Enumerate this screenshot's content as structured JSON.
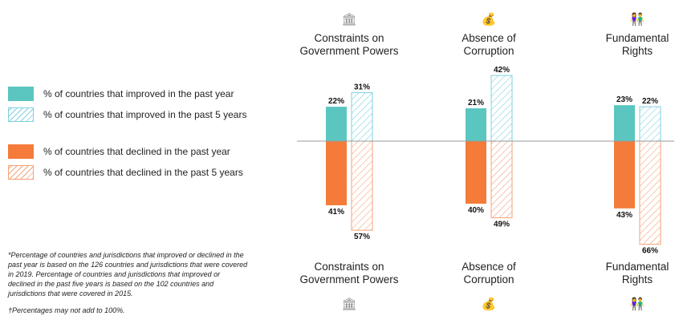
{
  "legend": [
    {
      "key": "improved_1y",
      "label": "% of countries that improved in the past year",
      "color": "#5bc5c0",
      "pattern": "solid"
    },
    {
      "key": "improved_5y",
      "label": "% of countries that improved in the past 5 years",
      "color": "#7fd1e0",
      "pattern": "hatch"
    },
    {
      "key": "declined_1y",
      "label": "% of countries that declined in the past year",
      "color": "#f47b3a",
      "pattern": "solid"
    },
    {
      "key": "declined_5y",
      "label": "% of countries that declined in the past 5 years",
      "color": "#f5a27a",
      "pattern": "hatch"
    }
  ],
  "notes": {
    "footnote": "*Percentage of countries and jurisdictions that improved or declined in the past year is based on the 126 countries and jurisdictions that were covered in 2019. Percentage of countries and jurisdictions that improved or declined in the past five years is based on the 102 countries and jurisdictions that were covered in 2015.",
    "disclaimer": "†Percentages may not add to 100%."
  },
  "icons": [
    "bank-icon",
    "money-bag-icon",
    "people-icon"
  ],
  "chart_data": {
    "type": "bar",
    "categories": [
      "Constraints on Government Powers",
      "Absence of Corruption",
      "Fundamental Rights"
    ],
    "category_lines": [
      [
        "Constraints on",
        "Government Powers"
      ],
      [
        "Absence of",
        "Corruption"
      ],
      [
        "Fundamental",
        "Rights"
      ]
    ],
    "series": [
      {
        "name": "% of countries that improved in the past year",
        "values": [
          22,
          21,
          23
        ],
        "labels": [
          "22%",
          "21%",
          "23%"
        ],
        "color": "#5bc5c0",
        "pattern": "solid",
        "direction": "up"
      },
      {
        "name": "% of countries that improved in the past 5 years",
        "values": [
          31,
          42,
          22
        ],
        "labels": [
          "31%",
          "42%",
          "22%"
        ],
        "color": "#7fd1e0",
        "pattern": "hatch",
        "direction": "up"
      },
      {
        "name": "% of countries that declined in the past year",
        "values": [
          41,
          40,
          43
        ],
        "labels": [
          "41%",
          "40%",
          "43%"
        ],
        "color": "#f47b3a",
        "pattern": "solid",
        "direction": "down"
      },
      {
        "name": "% of countries that declined in the past 5 years",
        "values": [
          57,
          49,
          66
        ],
        "labels": [
          "57%",
          "49%",
          "66%"
        ],
        "color": "#f5a27a",
        "pattern": "hatch",
        "direction": "down"
      }
    ],
    "grid": false,
    "legend_position": "left"
  }
}
